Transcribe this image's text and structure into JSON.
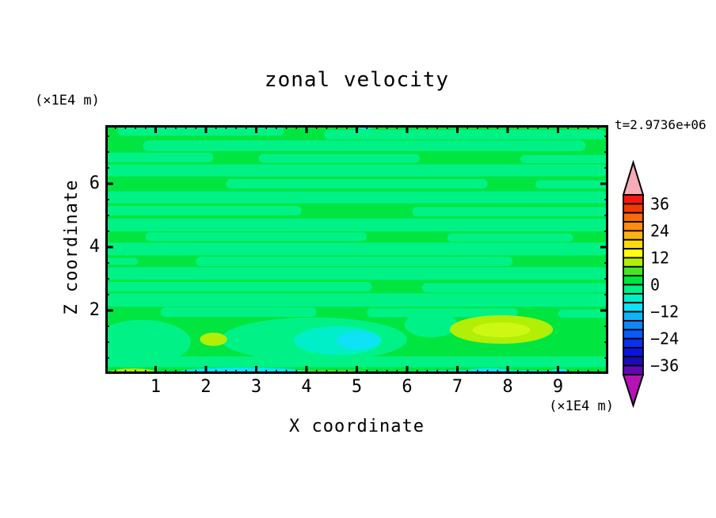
{
  "chart_data": {
    "type": "heatmap",
    "subtype": "filled_contour",
    "title": "zonal velocity",
    "timestamp_label": "t=2.9736e+06",
    "x_axis": {
      "label": "X coordinate",
      "unit": "(×1E4 m)",
      "range": [
        0,
        10
      ],
      "major_tick_labels": [
        "1",
        "2",
        "3",
        "4",
        "5",
        "6",
        "7",
        "8",
        "9"
      ],
      "major_tick_values": [
        1,
        2,
        3,
        4,
        5,
        6,
        7,
        8,
        9
      ],
      "minor_step": 0.2
    },
    "z_axis": {
      "label": "Z coordinate",
      "unit": "(×1E4 m)",
      "range": [
        0,
        7.85
      ],
      "major_tick_labels": [
        "2",
        "4",
        "6"
      ],
      "major_tick_values": [
        2,
        4,
        6
      ],
      "minor_step": 0.5
    },
    "colorbar": {
      "tick_labels": [
        "36",
        "24",
        "12",
        "0",
        "−12",
        "−24",
        "−36"
      ],
      "tick_values": [
        36,
        24,
        12,
        0,
        -12,
        -24,
        -36
      ],
      "level_min": -40,
      "level_max": 40,
      "level_step": 4,
      "segment_colors_top_to_bottom": [
        "#fa1414",
        "#ef3b00",
        "#fb6a07",
        "#fc8d0d",
        "#fdb30f",
        "#fdd910",
        "#fdfd12",
        "#b2ee06",
        "#46e71e",
        "#00e540",
        "#00f287",
        "#00efc8",
        "#10e2f5",
        "#0fb4f7",
        "#0d86fb",
        "#0b5afd",
        "#0a30f0",
        "#0a14dc",
        "#1b0bb4",
        "#5f0aae"
      ],
      "over_arrow_color": "#f7abb7",
      "under_arrow_color": "#b513b5"
    },
    "field": {
      "background_color_key": "green",
      "colors": {
        "green": "#00e540",
        "mint": "#00f287",
        "turquoise": "#00efc8",
        "cyan": "#10e2f5",
        "chartreuse": "#b2ee06",
        "chartreuse_light": "#ccf814"
      },
      "value_ranges": {
        "green": [
          0,
          4
        ],
        "mint": [
          -4,
          0
        ],
        "turquoise": [
          -8,
          -4
        ],
        "cyan": [
          -12,
          -8
        ],
        "chartreuse": [
          8,
          12
        ],
        "chartreuse_light": [
          12,
          16
        ]
      },
      "regions": [
        {
          "shape": "band",
          "c": "mint",
          "x": [
            0.25,
            3.55
          ],
          "z": [
            7.52,
            7.82
          ]
        },
        {
          "shape": "band",
          "c": "mint",
          "x": [
            4.35,
            9.95
          ],
          "z": [
            7.4,
            7.7
          ]
        },
        {
          "shape": "band",
          "c": "mint",
          "x": [
            0.75,
            9.55
          ],
          "z": [
            7.03,
            7.37
          ]
        },
        {
          "shape": "band",
          "c": "mint",
          "x": [
            0,
            2.15
          ],
          "z": [
            6.68,
            6.98
          ]
        },
        {
          "shape": "band",
          "c": "mint",
          "x": [
            3.05,
            6.25
          ],
          "z": [
            6.66,
            6.94
          ]
        },
        {
          "shape": "band",
          "c": "mint",
          "x": [
            8.25,
            10
          ],
          "z": [
            6.65,
            6.91
          ]
        },
        {
          "shape": "band",
          "c": "mint",
          "x": [
            0,
            10
          ],
          "z": [
            6.23,
            6.61
          ]
        },
        {
          "shape": "band",
          "c": "mint",
          "x": [
            2.4,
            7.6
          ],
          "z": [
            5.85,
            6.15
          ]
        },
        {
          "shape": "band",
          "c": "mint",
          "x": [
            8.55,
            10
          ],
          "z": [
            5.85,
            6.11
          ]
        },
        {
          "shape": "band",
          "c": "mint",
          "x": [
            0,
            10
          ],
          "z": [
            5.38,
            5.76
          ]
        },
        {
          "shape": "band",
          "c": "mint",
          "x": [
            0,
            3.9
          ],
          "z": [
            5.0,
            5.3
          ]
        },
        {
          "shape": "band",
          "c": "mint",
          "x": [
            6.1,
            10
          ],
          "z": [
            4.97,
            5.27
          ]
        },
        {
          "shape": "band",
          "c": "mint",
          "x": [
            0,
            10
          ],
          "z": [
            4.5,
            4.9
          ]
        },
        {
          "shape": "band",
          "c": "mint",
          "x": [
            0.8,
            5.2
          ],
          "z": [
            4.19,
            4.47
          ]
        },
        {
          "shape": "band",
          "c": "mint",
          "x": [
            6.8,
            9.3
          ],
          "z": [
            4.17,
            4.43
          ]
        },
        {
          "shape": "band",
          "c": "mint",
          "x": [
            0,
            10
          ],
          "z": [
            3.74,
            4.14
          ]
        },
        {
          "shape": "band",
          "c": "mint",
          "x": [
            0,
            0.65
          ],
          "z": [
            3.44,
            3.66
          ]
        },
        {
          "shape": "band",
          "c": "mint",
          "x": [
            1.8,
            8.1
          ],
          "z": [
            3.4,
            3.7
          ]
        },
        {
          "shape": "band",
          "c": "mint",
          "x": [
            0,
            10
          ],
          "z": [
            2.97,
            3.37
          ]
        },
        {
          "shape": "band",
          "c": "mint",
          "x": [
            0,
            5.3
          ],
          "z": [
            2.6,
            2.9
          ]
        },
        {
          "shape": "band",
          "c": "mint",
          "x": [
            6.3,
            10
          ],
          "z": [
            2.57,
            2.87
          ]
        },
        {
          "shape": "band",
          "c": "mint",
          "x": [
            0,
            10
          ],
          "z": [
            2.12,
            2.54
          ]
        },
        {
          "shape": "band",
          "c": "mint",
          "x": [
            1.1,
            4.2
          ],
          "z": [
            1.8,
            2.1
          ]
        },
        {
          "shape": "band",
          "c": "mint",
          "x": [
            5.2,
            8.2
          ],
          "z": [
            1.79,
            2.07
          ]
        },
        {
          "shape": "band",
          "c": "mint",
          "x": [
            9.0,
            10
          ],
          "z": [
            1.77,
            2.03
          ]
        },
        {
          "shape": "band",
          "c": "mint",
          "x": [
            0,
            10
          ],
          "z": [
            0.21,
            0.55
          ]
        },
        {
          "shape": "blob",
          "c": "mint",
          "x": [
            -0.25,
            1.7
          ],
          "z": [
            0.3,
            1.7
          ]
        },
        {
          "shape": "blob",
          "c": "mint",
          "x": [
            2.3,
            6.0
          ],
          "z": [
            0.4,
            1.78
          ]
        },
        {
          "shape": "blob",
          "c": "mint",
          "x": [
            5.95,
            7.0
          ],
          "z": [
            1.15,
            1.95
          ]
        },
        {
          "shape": "blob",
          "c": "turquoise",
          "x": [
            3.75,
            5.5
          ],
          "z": [
            0.6,
            1.5
          ]
        },
        {
          "shape": "blob",
          "c": "cyan",
          "x": [
            4.6,
            5.45
          ],
          "z": [
            0.78,
            1.35
          ]
        },
        {
          "shape": "blob",
          "c": "chartreuse",
          "x": [
            6.85,
            8.9
          ],
          "z": [
            0.95,
            1.85
          ]
        },
        {
          "shape": "blob",
          "c": "chartreuse_light",
          "x": [
            7.3,
            8.45
          ],
          "z": [
            1.15,
            1.62
          ]
        },
        {
          "shape": "blob",
          "c": "chartreuse",
          "x": [
            1.88,
            2.42
          ],
          "z": [
            0.88,
            1.3
          ]
        },
        {
          "shape": "blob",
          "c": "turquoise",
          "x": [
            5.0,
            5.35
          ],
          "z": [
            7.7,
            8.02
          ]
        },
        {
          "shape": "blob",
          "c": "chartreuse",
          "x": [
            0.08,
            1.02
          ],
          "z": [
            -0.1,
            0.17
          ]
        },
        {
          "shape": "blob",
          "c": "cyan",
          "x": [
            1.5,
            3.95
          ],
          "z": [
            -0.05,
            0.2
          ]
        },
        {
          "shape": "blob",
          "c": "chartreuse",
          "x": [
            3.4,
            5.5
          ],
          "z": [
            -0.08,
            0.1
          ]
        },
        {
          "shape": "blob",
          "c": "cyan",
          "x": [
            5.95,
            9.25
          ],
          "z": [
            -0.06,
            0.12
          ]
        },
        {
          "shape": "blob",
          "c": "cyan",
          "x": [
            7.15,
            8.1
          ],
          "z": [
            -0.05,
            0.18
          ]
        },
        {
          "shape": "blob",
          "c": "cyan",
          "x": [
            8.85,
            9.22
          ],
          "z": [
            -0.05,
            0.16
          ]
        }
      ]
    }
  }
}
